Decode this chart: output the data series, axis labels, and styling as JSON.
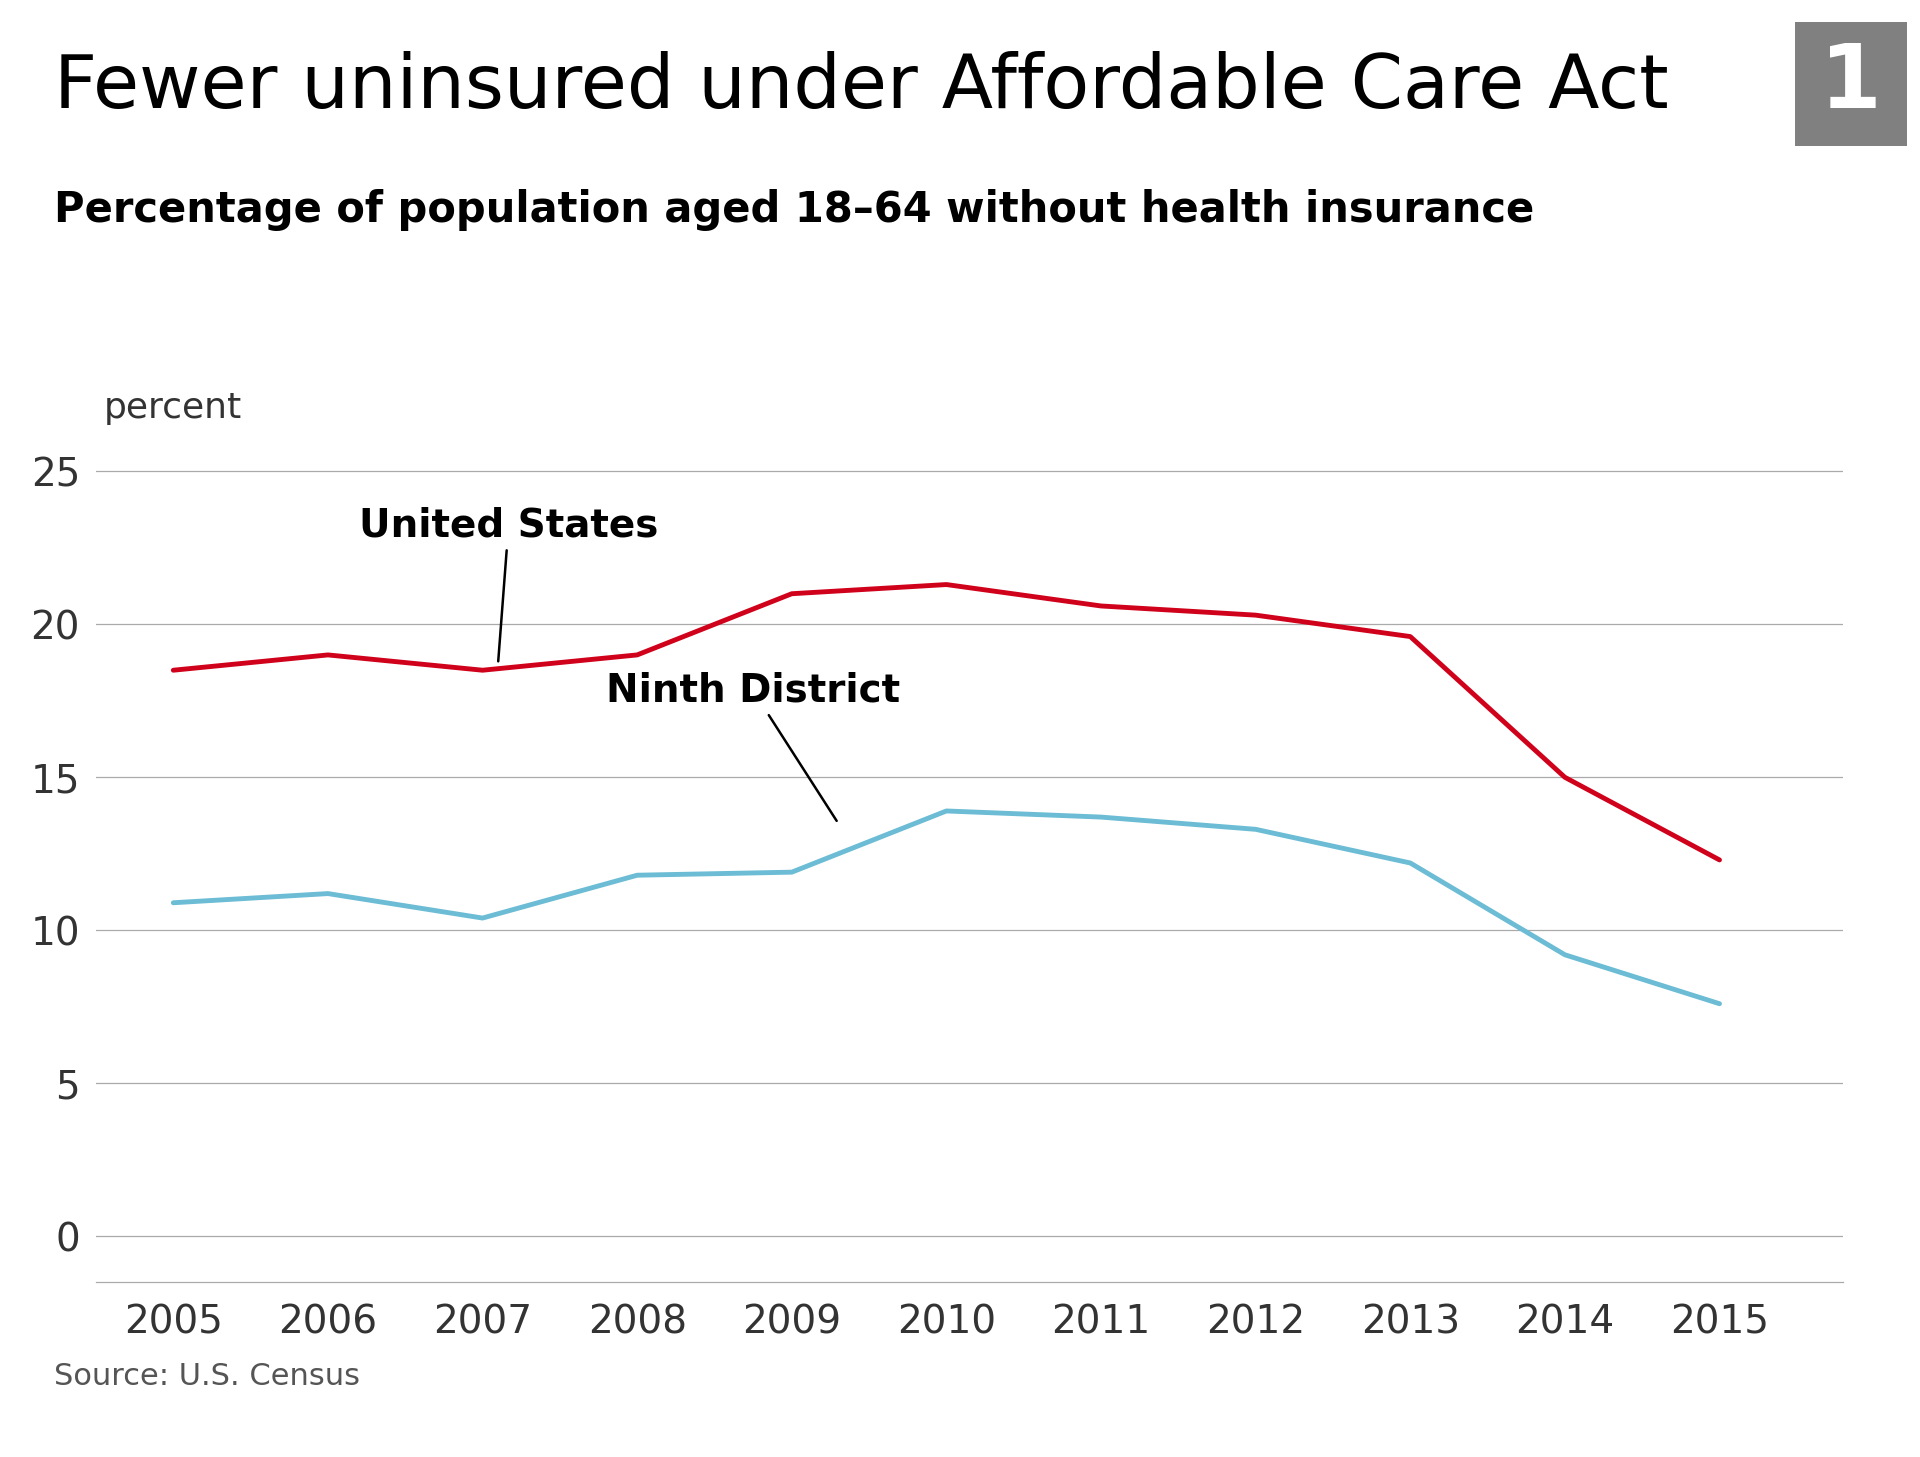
{
  "title": "Fewer uninsured under Affordable Care Act",
  "subtitle": "Percentage of population aged 18–64 without health insurance",
  "badge_number": "1",
  "years": [
    2005,
    2006,
    2007,
    2008,
    2009,
    2010,
    2011,
    2012,
    2013,
    2014,
    2015
  ],
  "us_values": [
    18.5,
    19.0,
    18.5,
    19.0,
    21.0,
    21.3,
    20.6,
    20.3,
    19.6,
    15.0,
    12.3
  ],
  "ninth_values": [
    10.9,
    11.2,
    10.4,
    11.8,
    11.9,
    13.9,
    13.7,
    13.3,
    12.2,
    9.2,
    7.6
  ],
  "us_color": "#d0021b",
  "ninth_color": "#6bbcd4",
  "background_color": "#ffffff",
  "title_color": "#000000",
  "subtitle_color": "#000000",
  "source_text": "Source: U.S. Census",
  "yticks": [
    0,
    5,
    10,
    15,
    20,
    25
  ],
  "ylim": [
    -1.5,
    28.5
  ],
  "xlim": [
    2004.5,
    2015.8
  ],
  "ylabel_text": "percent",
  "us_label": "United States",
  "ninth_label": "Ninth District",
  "line_width": 3.5,
  "grid_color": "#aaaaaa",
  "tick_color": "#333333",
  "badge_bg_color": "#808080",
  "badge_text_color": "#ffffff"
}
